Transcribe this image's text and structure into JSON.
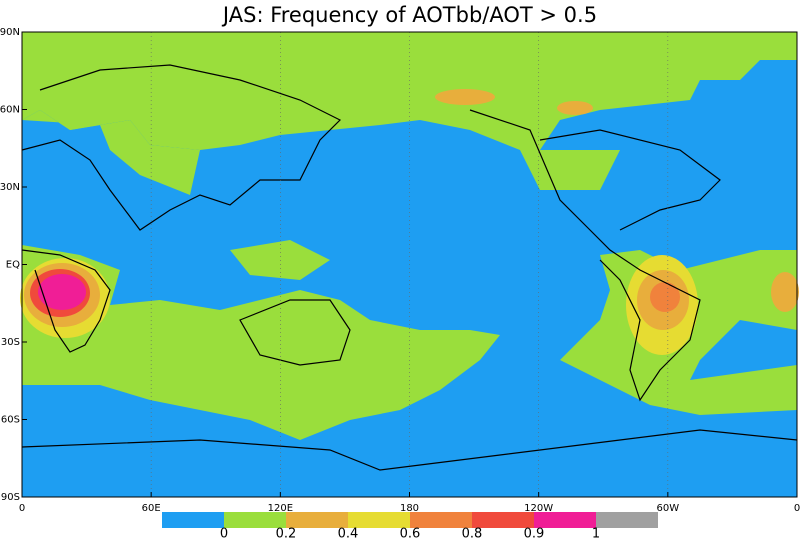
{
  "map": {
    "title": "JAS: Frequency of AOTbb/AOT > 0.5",
    "lat_labels": [
      "90N",
      "60N",
      "30N",
      "EQ",
      "30S",
      "60S",
      "90S"
    ],
    "lon_labels": [
      "0",
      "60E",
      "120E",
      "180",
      "120W",
      "60W",
      "0"
    ],
    "colorbar": {
      "colors": [
        "#1e9ef2",
        "#9ade3c",
        "#e8ae3c",
        "#e6dc32",
        "#f0823c",
        "#f04a3c",
        "#f01e96",
        "#a0a0a0"
      ],
      "levels": [
        0,
        0.2,
        0.4,
        0.6,
        0.8,
        0.9,
        1
      ]
    }
  }
}
